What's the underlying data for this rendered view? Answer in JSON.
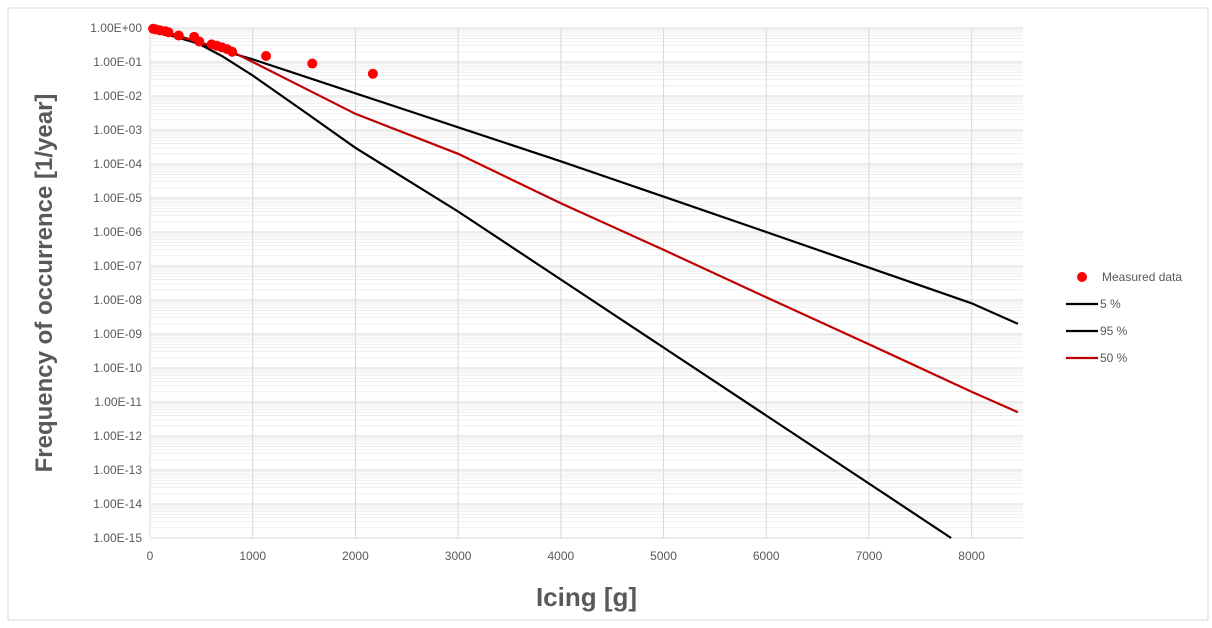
{
  "chart_data": {
    "type": "scatter",
    "title": "",
    "xlabel": "Icing [g]",
    "ylabel": "Frequency of occurrence [1/year]",
    "xlim": [
      0,
      8500
    ],
    "ylim": [
      1e-15,
      1
    ],
    "y_scale": "log",
    "grid": true,
    "legend_position": "right",
    "x_ticks": [
      "0",
      "1000",
      "2000",
      "3000",
      "4000",
      "5000",
      "6000",
      "7000",
      "8000"
    ],
    "y_ticks": [
      "1.00E+00",
      "1.00E-01",
      "1.00E-02",
      "1.00E-03",
      "1.00E-04",
      "1.00E-05",
      "1.00E-06",
      "1.00E-07",
      "1.00E-08",
      "1.00E-09",
      "1.00E-10",
      "1.00E-11",
      "1.00E-12",
      "1.00E-13",
      "1.00E-14",
      "1.00E-15"
    ],
    "series": [
      {
        "name": "Measured data",
        "kind": "scatter",
        "color": "#ff0000",
        "x": [
          30,
          60,
          100,
          150,
          180,
          280,
          430,
          480,
          600,
          650,
          700,
          750,
          800,
          1130,
          1580,
          2170
        ],
        "y": [
          0.95,
          0.9,
          0.85,
          0.8,
          0.75,
          0.6,
          0.55,
          0.4,
          0.33,
          0.3,
          0.27,
          0.24,
          0.2,
          0.15,
          0.09,
          0.045
        ]
      },
      {
        "name": "5 %",
        "kind": "line",
        "color": "#000000",
        "x": [
          0,
          400,
          1000,
          2000,
          3000,
          4000,
          5000,
          6000,
          7000,
          8000,
          8450
        ],
        "y": [
          0.9,
          0.4,
          0.12,
          0.012,
          0.0012,
          0.00012,
          1.1e-05,
          1e-06,
          9e-08,
          8e-09,
          2e-09
        ]
      },
      {
        "name": "95 %",
        "kind": "line",
        "color": "#000000",
        "x": [
          0,
          200,
          400,
          700,
          1000,
          1500,
          2000,
          3000,
          4000,
          5000,
          6000,
          7000,
          7800
        ],
        "y": [
          0.9,
          0.7,
          0.45,
          0.15,
          0.04,
          0.0035,
          0.0003,
          4e-06,
          4e-08,
          4e-10,
          4e-12,
          4e-14,
          1e-15
        ]
      },
      {
        "name": "50 %",
        "kind": "line",
        "color": "#c00000",
        "x": [
          0,
          400,
          800,
          1000,
          2000,
          3000,
          4000,
          5000,
          6000,
          7000,
          8000,
          8450
        ],
        "y": [
          0.9,
          0.45,
          0.2,
          0.1,
          0.003,
          0.0002,
          7e-06,
          3e-07,
          1.2e-08,
          5e-10,
          2e-11,
          5e-12
        ]
      }
    ]
  }
}
